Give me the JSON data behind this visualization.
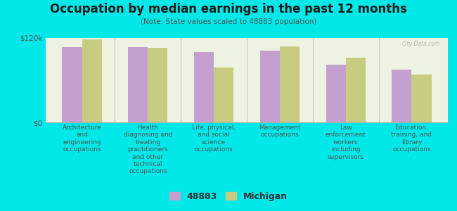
{
  "title": "Occupation by median earnings in the past 12 months",
  "subtitle": "(Note: State values scaled to 48883 population)",
  "background_outer": "#00e8e8",
  "background_inner": "#eef2e0",
  "bar_color_48883": "#c4a0d0",
  "bar_color_michigan": "#c8cc80",
  "categories": [
    "Architecture\nand\nengineering\noccupations",
    "Health\ndiagnosing and\ntreating\npractitioners\nand other\ntechnical\noccupations",
    "Life, physical,\nand social\nscience\noccupations",
    "Management\noccupations",
    "Law\nenforcement\nworkers\nincluding\nsupervisors",
    "Education,\ntraining, and\nlibrary\noccupations"
  ],
  "values_48883": [
    107000,
    107000,
    100000,
    102000,
    82000,
    75000
  ],
  "values_michigan": [
    118000,
    106000,
    78000,
    108000,
    92000,
    68000
  ],
  "ymax": 120000,
  "yticks": [
    0,
    120000
  ],
  "ytick_labels": [
    "$0",
    "$120k"
  ],
  "legend_labels": [
    "48883",
    "Michigan"
  ],
  "watermark": "City-Data.com",
  "title_fontsize": 12,
  "subtitle_fontsize": 7.5,
  "tick_label_fontsize": 6.5,
  "ytick_fontsize": 7.5,
  "legend_fontsize": 9
}
